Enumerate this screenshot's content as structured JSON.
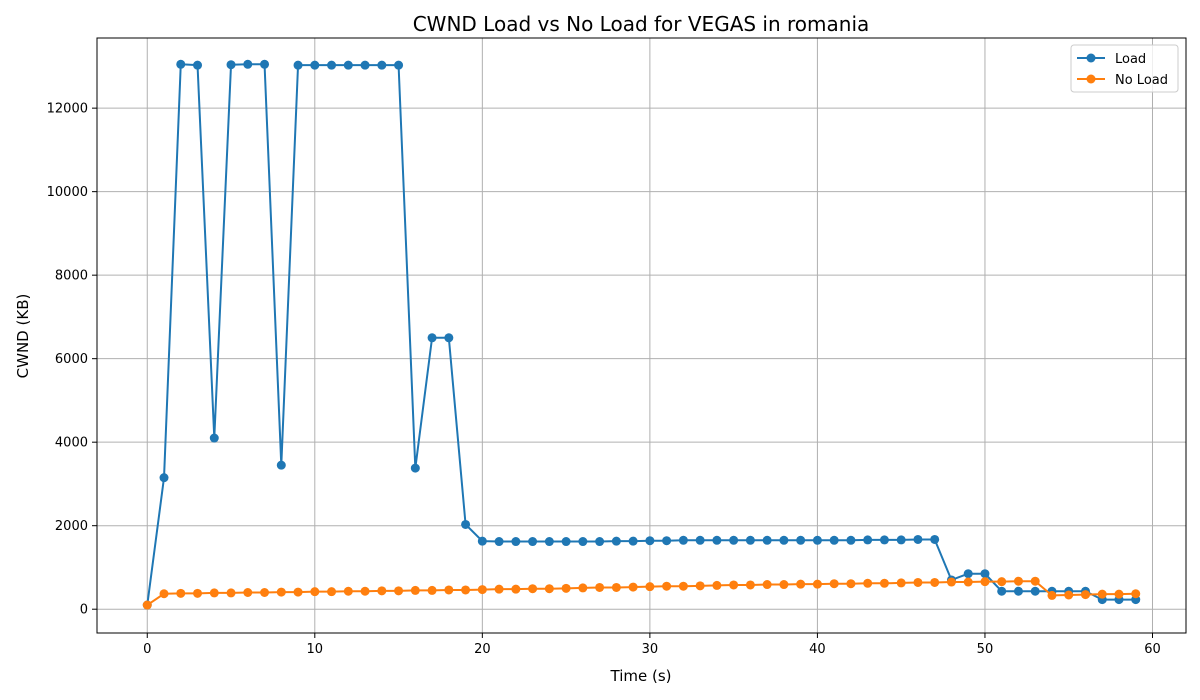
{
  "chart_data": {
    "type": "line",
    "title": "CWND Load vs No Load for VEGAS in romania",
    "xlabel": "Time (s)",
    "ylabel": "CWND (KB)",
    "xlim": [
      -3,
      62
    ],
    "ylim": [
      -570,
      13680
    ],
    "xticks": [
      0,
      10,
      20,
      30,
      40,
      50,
      60
    ],
    "yticks": [
      0,
      2000,
      4000,
      6000,
      8000,
      10000,
      12000
    ],
    "grid": true,
    "legend_position": "top-right",
    "x": [
      0,
      1,
      2,
      3,
      4,
      5,
      6,
      7,
      8,
      9,
      10,
      11,
      12,
      13,
      14,
      15,
      16,
      17,
      18,
      19,
      20,
      21,
      22,
      23,
      24,
      25,
      26,
      27,
      28,
      29,
      30,
      31,
      32,
      33,
      34,
      35,
      36,
      37,
      38,
      39,
      40,
      41,
      42,
      43,
      44,
      45,
      46,
      47,
      48,
      49,
      50,
      51,
      52,
      53,
      54,
      55,
      56,
      57,
      58,
      59
    ],
    "series": [
      {
        "name": "Load",
        "color": "#1f77b4",
        "marker": "circle",
        "values": [
          100,
          3150,
          13050,
          13030,
          4100,
          13040,
          13050,
          13050,
          3450,
          13030,
          13030,
          13030,
          13030,
          13030,
          13030,
          13030,
          3380,
          6500,
          6500,
          2030,
          1630,
          1620,
          1620,
          1620,
          1620,
          1620,
          1620,
          1620,
          1630,
          1630,
          1640,
          1640,
          1650,
          1650,
          1650,
          1650,
          1650,
          1650,
          1650,
          1650,
          1650,
          1650,
          1650,
          1660,
          1660,
          1660,
          1670,
          1670,
          700,
          850,
          850,
          430,
          430,
          430,
          430,
          430,
          430,
          230,
          230,
          230
        ]
      },
      {
        "name": "No Load",
        "color": "#ff7f0e",
        "marker": "circle",
        "values": [
          100,
          370,
          380,
          380,
          390,
          390,
          400,
          400,
          410,
          410,
          420,
          420,
          430,
          430,
          440,
          440,
          450,
          450,
          460,
          460,
          470,
          480,
          480,
          490,
          490,
          500,
          510,
          520,
          520,
          530,
          540,
          550,
          550,
          560,
          570,
          580,
          580,
          590,
          590,
          600,
          600,
          610,
          610,
          620,
          620,
          630,
          640,
          640,
          650,
          650,
          660,
          660,
          670,
          670,
          330,
          340,
          350,
          360,
          360,
          370
        ]
      }
    ]
  }
}
